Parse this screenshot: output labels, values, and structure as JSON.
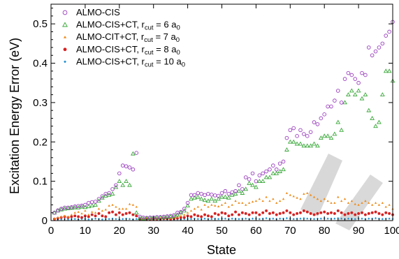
{
  "chart_data": {
    "type": "scatter",
    "xlabel": "State",
    "ylabel": "Excitation Energy Error (eV)",
    "xlim": [
      0,
      100
    ],
    "ylim": [
      0,
      0.55
    ],
    "x_ticks": [
      0,
      10,
      20,
      30,
      40,
      50,
      60,
      70,
      80,
      90,
      100
    ],
    "y_ticks": [
      0,
      0.1,
      0.2,
      0.3,
      0.4,
      0.5
    ],
    "legend_position": "top-left",
    "x": [
      1,
      2,
      3,
      4,
      5,
      6,
      7,
      8,
      9,
      10,
      11,
      12,
      13,
      14,
      15,
      16,
      17,
      18,
      19,
      20,
      21,
      22,
      23,
      24,
      25,
      26,
      27,
      28,
      29,
      30,
      31,
      32,
      33,
      34,
      35,
      36,
      37,
      38,
      39,
      40,
      41,
      42,
      43,
      44,
      45,
      46,
      47,
      48,
      49,
      50,
      51,
      52,
      53,
      54,
      55,
      56,
      57,
      58,
      59,
      60,
      61,
      62,
      63,
      64,
      65,
      66,
      67,
      68,
      69,
      70,
      71,
      72,
      73,
      74,
      75,
      76,
      77,
      78,
      79,
      80,
      81,
      82,
      83,
      84,
      85,
      86,
      87,
      88,
      89,
      90,
      91,
      92,
      93,
      94,
      95,
      96,
      97,
      98,
      99,
      100
    ],
    "series": [
      {
        "name": "ALMO-CIS",
        "marker": "circle-open",
        "color": "#9b3fbf",
        "values": [
          0.02,
          0.026,
          0.03,
          0.033,
          0.033,
          0.034,
          0.036,
          0.037,
          0.038,
          0.04,
          0.045,
          0.047,
          0.048,
          0.055,
          0.062,
          0.068,
          0.07,
          0.08,
          0.09,
          0.12,
          0.14,
          0.138,
          0.135,
          0.13,
          0.172,
          0.01,
          0.008,
          0.007,
          0.008,
          0.008,
          0.009,
          0.009,
          0.01,
          0.011,
          0.012,
          0.014,
          0.02,
          0.022,
          0.03,
          0.045,
          0.065,
          0.065,
          0.07,
          0.068,
          0.065,
          0.068,
          0.066,
          0.064,
          0.063,
          0.07,
          0.075,
          0.068,
          0.072,
          0.075,
          0.09,
          0.08,
          0.11,
          0.105,
          0.12,
          0.1,
          0.115,
          0.12,
          0.125,
          0.13,
          0.14,
          0.13,
          0.145,
          0.15,
          0.21,
          0.23,
          0.235,
          0.215,
          0.23,
          0.22,
          0.215,
          0.225,
          0.25,
          0.245,
          0.26,
          0.27,
          0.29,
          0.29,
          0.305,
          0.33,
          0.3,
          0.36,
          0.375,
          0.37,
          0.36,
          0.35,
          0.375,
          0.37,
          0.44,
          0.42,
          0.43,
          0.44,
          0.45,
          0.47,
          0.48,
          0.505
        ]
      },
      {
        "name": "ALMO-CIS+CT, r",
        "name_sub": "cut",
        "name_tail": " = 6 a",
        "name_tail_sub": "0",
        "marker": "triangle-open",
        "color": "#3aa83a",
        "values": [
          0.02,
          0.025,
          0.028,
          0.03,
          0.031,
          0.032,
          0.033,
          0.033,
          0.035,
          0.034,
          0.036,
          0.038,
          0.04,
          0.05,
          0.058,
          0.063,
          0.065,
          0.068,
          0.085,
          0.1,
          0.09,
          0.1,
          0.09,
          0.17,
          0.02,
          0.006,
          0.005,
          0.006,
          0.006,
          0.007,
          0.007,
          0.008,
          0.008,
          0.009,
          0.01,
          0.011,
          0.015,
          0.02,
          0.025,
          0.038,
          0.055,
          0.058,
          0.06,
          0.055,
          0.052,
          0.05,
          0.055,
          0.05,
          0.055,
          0.06,
          0.06,
          0.058,
          0.065,
          0.068,
          0.075,
          0.07,
          0.08,
          0.095,
          0.09,
          0.085,
          0.1,
          0.1,
          0.11,
          0.11,
          0.12,
          0.12,
          0.125,
          0.13,
          0.18,
          0.2,
          0.2,
          0.195,
          0.195,
          0.19,
          0.19,
          0.19,
          0.195,
          0.19,
          0.21,
          0.215,
          0.215,
          0.21,
          0.22,
          0.25,
          0.23,
          0.3,
          0.32,
          0.33,
          0.32,
          0.33,
          0.31,
          0.32,
          0.28,
          0.26,
          0.24,
          0.25,
          0.32,
          0.38,
          0.38,
          0.355
        ]
      },
      {
        "name": "ALMO-CIT+CT, r",
        "name_sub": "cut",
        "name_tail": " = 7 a",
        "name_tail_sub": "0",
        "marker": "triangle-filled",
        "color": "#ef8a17",
        "values": [
          0.005,
          0.008,
          0.01,
          0.012,
          0.01,
          0.015,
          0.02,
          0.022,
          0.018,
          0.025,
          0.015,
          0.022,
          0.02,
          0.03,
          0.025,
          0.028,
          0.038,
          0.04,
          0.035,
          0.03,
          0.03,
          0.03,
          0.042,
          0.04,
          0.035,
          0.005,
          0.005,
          0.006,
          0.004,
          0.005,
          0.005,
          0.006,
          0.006,
          0.007,
          0.006,
          0.008,
          0.01,
          0.012,
          0.015,
          0.02,
          0.025,
          0.03,
          0.035,
          0.028,
          0.04,
          0.035,
          0.04,
          0.038,
          0.036,
          0.04,
          0.045,
          0.035,
          0.04,
          0.05,
          0.045,
          0.045,
          0.04,
          0.045,
          0.048,
          0.05,
          0.055,
          0.05,
          0.06,
          0.05,
          0.055,
          0.045,
          0.05,
          0.055,
          0.07,
          0.065,
          0.062,
          0.058,
          0.055,
          0.068,
          0.07,
          0.065,
          0.06,
          0.055,
          0.05,
          0.055,
          0.05,
          0.045,
          0.045,
          0.06,
          0.05,
          0.055,
          0.045,
          0.05,
          0.042,
          0.04,
          0.045,
          0.05,
          0.045,
          0.04,
          0.045,
          0.04,
          0.045,
          0.035,
          0.04,
          0.03
        ]
      },
      {
        "name": "ALMO-CIS+CT, r",
        "name_sub": "cut",
        "name_tail": " = 8 a",
        "name_tail_sub": "0",
        "marker": "circle-filled",
        "color": "#d62020",
        "values": [
          0.004,
          0.006,
          0.008,
          0.01,
          0.008,
          0.01,
          0.012,
          0.01,
          0.008,
          0.012,
          0.01,
          0.015,
          0.012,
          0.018,
          0.012,
          0.01,
          0.02,
          0.022,
          0.015,
          0.02,
          0.015,
          0.018,
          0.02,
          0.015,
          0.012,
          0.004,
          0.003,
          0.004,
          0.003,
          0.004,
          0.004,
          0.004,
          0.005,
          0.005,
          0.004,
          0.005,
          0.006,
          0.008,
          0.008,
          0.012,
          0.01,
          0.015,
          0.012,
          0.01,
          0.015,
          0.012,
          0.01,
          0.018,
          0.015,
          0.02,
          0.018,
          0.012,
          0.015,
          0.022,
          0.015,
          0.02,
          0.018,
          0.015,
          0.02,
          0.02,
          0.015,
          0.02,
          0.025,
          0.018,
          0.02,
          0.015,
          0.018,
          0.02,
          0.025,
          0.02,
          0.015,
          0.018,
          0.02,
          0.025,
          0.022,
          0.018,
          0.015,
          0.018,
          0.02,
          0.022,
          0.018,
          0.02,
          0.018,
          0.025,
          0.02,
          0.015,
          0.018,
          0.02,
          0.015,
          0.018,
          0.02,
          0.015,
          0.018,
          0.02,
          0.022,
          0.018,
          0.015,
          0.02,
          0.018,
          0.015
        ]
      },
      {
        "name": "ALMO-CIS+CT, r",
        "name_sub": "cut",
        "name_tail": " = 10 a",
        "name_tail_sub": "0",
        "marker": "diamond-filled",
        "color": "#1f8fd0",
        "values": [
          0.002,
          0.003,
          0.003,
          0.004,
          0.003,
          0.004,
          0.004,
          0.003,
          0.004,
          0.004,
          0.003,
          0.004,
          0.005,
          0.004,
          0.003,
          0.004,
          0.004,
          0.005,
          0.004,
          0.003,
          0.004,
          0.005,
          0.004,
          0.003,
          0.004,
          0.002,
          0.002,
          0.002,
          0.002,
          0.002,
          0.002,
          0.002,
          0.003,
          0.003,
          0.002,
          0.003,
          0.003,
          0.003,
          0.004,
          0.004,
          0.004,
          0.005,
          0.004,
          0.004,
          0.005,
          0.004,
          0.004,
          0.005,
          0.004,
          0.005,
          0.005,
          0.004,
          0.005,
          0.005,
          0.004,
          0.005,
          0.005,
          0.004,
          0.005,
          0.005,
          0.004,
          0.005,
          0.006,
          0.005,
          0.005,
          0.004,
          0.005,
          0.005,
          0.006,
          0.005,
          0.004,
          0.005,
          0.005,
          0.006,
          0.005,
          0.005,
          0.004,
          0.005,
          0.005,
          0.006,
          0.005,
          0.005,
          0.005,
          0.006,
          0.005,
          0.004,
          0.005,
          0.005,
          0.004,
          0.005,
          0.005,
          0.004,
          0.005,
          0.005,
          0.006,
          0.005,
          0.004,
          0.005,
          0.005,
          0.004
        ]
      }
    ]
  }
}
